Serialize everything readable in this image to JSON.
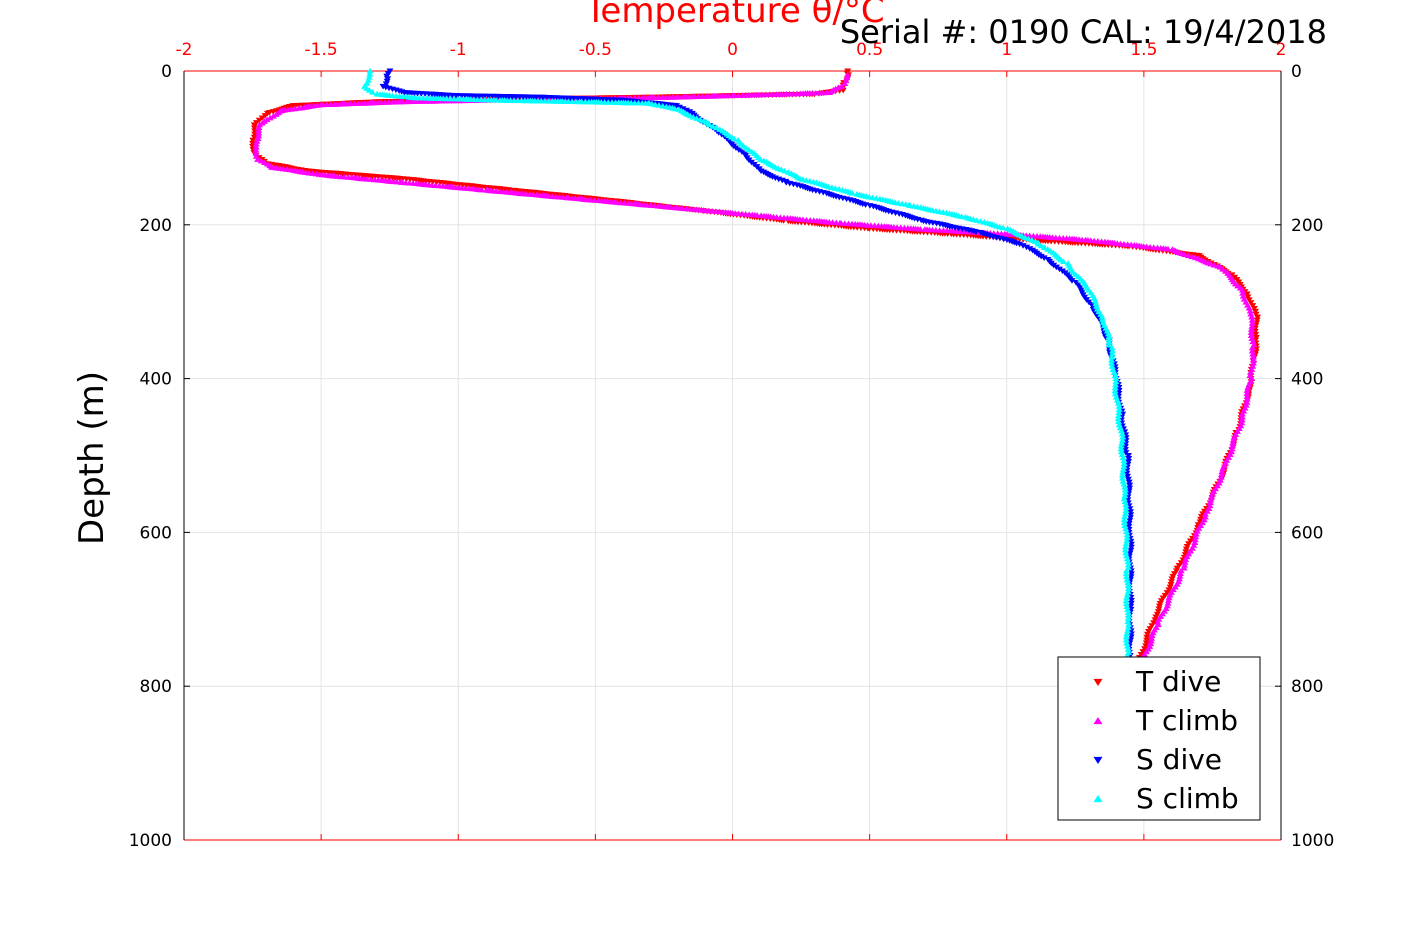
{
  "chart_data": {
    "type": "scatter",
    "title": "Serial #: 0190  CAL: 19/4/2018",
    "xlabel": "Temperature θ/°C",
    "ylabel": "Depth (m)",
    "xlim": [
      -2,
      2
    ],
    "ylim": [
      0,
      1000
    ],
    "y_reversed": true,
    "grid": true,
    "legend_position": "bottom-right",
    "x_ticks": [
      "-2",
      "-1.5",
      "-1",
      "-0.5",
      "0",
      "0.5",
      "1",
      "1.5",
      "2"
    ],
    "y_ticks": [
      "0",
      "200",
      "400",
      "600",
      "800",
      "1000"
    ],
    "series": [
      {
        "name": "T dive",
        "marker": "triangle-down",
        "color": "#ff0000",
        "x": [
          0.42,
          0.42,
          0.41,
          0.4,
          0.3,
          0.0,
          -0.3,
          -0.7,
          -1.0,
          -1.3,
          -1.6,
          -1.7,
          -1.74,
          -1.75,
          -1.74,
          -1.7,
          -1.55,
          -1.2,
          -0.8,
          -0.4,
          -0.1,
          0.2,
          0.5,
          0.8,
          1.1,
          1.45,
          1.7,
          1.82,
          1.88,
          1.91,
          1.91,
          1.9,
          1.88,
          1.84,
          1.78,
          1.7,
          1.62,
          1.54,
          1.48
        ],
        "y": [
          0,
          5,
          15,
          25,
          30,
          32,
          34,
          36,
          38,
          40,
          45,
          55,
          70,
          90,
          110,
          120,
          130,
          140,
          155,
          170,
          182,
          195,
          205,
          212,
          220,
          228,
          240,
          265,
          290,
          320,
          350,
          380,
          420,
          470,
          530,
          590,
          650,
          710,
          770
        ]
      },
      {
        "name": "T climb",
        "marker": "triangle-up",
        "color": "#ff00ff",
        "x": [
          0.42,
          0.4,
          0.35,
          0.2,
          0.0,
          -0.2,
          -0.5,
          -0.9,
          -1.2,
          -1.5,
          -1.65,
          -1.72,
          -1.74,
          -1.73,
          -1.68,
          -1.5,
          -1.2,
          -0.9,
          -0.6,
          -0.2,
          0.1,
          0.4,
          0.7,
          1.0,
          1.3,
          1.6,
          1.78,
          1.86,
          1.89,
          1.9,
          1.89,
          1.86,
          1.8,
          1.72,
          1.64,
          1.55,
          1.48
        ],
        "y": [
          5,
          20,
          28,
          30,
          32,
          34,
          36,
          38,
          40,
          44,
          52,
          70,
          95,
          115,
          125,
          135,
          145,
          155,
          165,
          178,
          188,
          198,
          206,
          212,
          220,
          232,
          255,
          285,
          320,
          360,
          400,
          450,
          510,
          580,
          650,
          720,
          780
        ]
      },
      {
        "name": "S dive",
        "marker": "triangle-down",
        "color": "#0000ff",
        "x": [
          -1.25,
          -1.26,
          -1.27,
          -1.2,
          -1.0,
          -0.7,
          -0.4,
          -0.2,
          -0.15,
          -0.05,
          0.05,
          0.1,
          0.2,
          0.35,
          0.5,
          0.7,
          0.9,
          1.05,
          1.15,
          1.25,
          1.32,
          1.37,
          1.4,
          1.42,
          1.44,
          1.45,
          1.45,
          1.45
        ],
        "y": [
          0,
          10,
          20,
          28,
          32,
          34,
          38,
          45,
          55,
          80,
          110,
          130,
          145,
          160,
          175,
          195,
          210,
          225,
          245,
          275,
          310,
          350,
          400,
          450,
          500,
          600,
          700,
          760
        ]
      },
      {
        "name": "S climb",
        "marker": "triangle-up",
        "color": "#00ffff",
        "x": [
          -1.32,
          -1.34,
          -1.3,
          -1.15,
          -0.85,
          -0.55,
          -0.3,
          -0.2,
          -0.08,
          0.02,
          0.1,
          0.25,
          0.45,
          0.65,
          0.85,
          1.0,
          1.12,
          1.22,
          1.3,
          1.35,
          1.38,
          1.4,
          1.42,
          1.43,
          1.44,
          1.44,
          1.44
        ],
        "y": [
          0,
          20,
          30,
          35,
          38,
          40,
          42,
          50,
          70,
          90,
          115,
          140,
          160,
          175,
          190,
          205,
          225,
          250,
          285,
          320,
          360,
          420,
          480,
          560,
          650,
          720,
          760
        ]
      }
    ]
  }
}
